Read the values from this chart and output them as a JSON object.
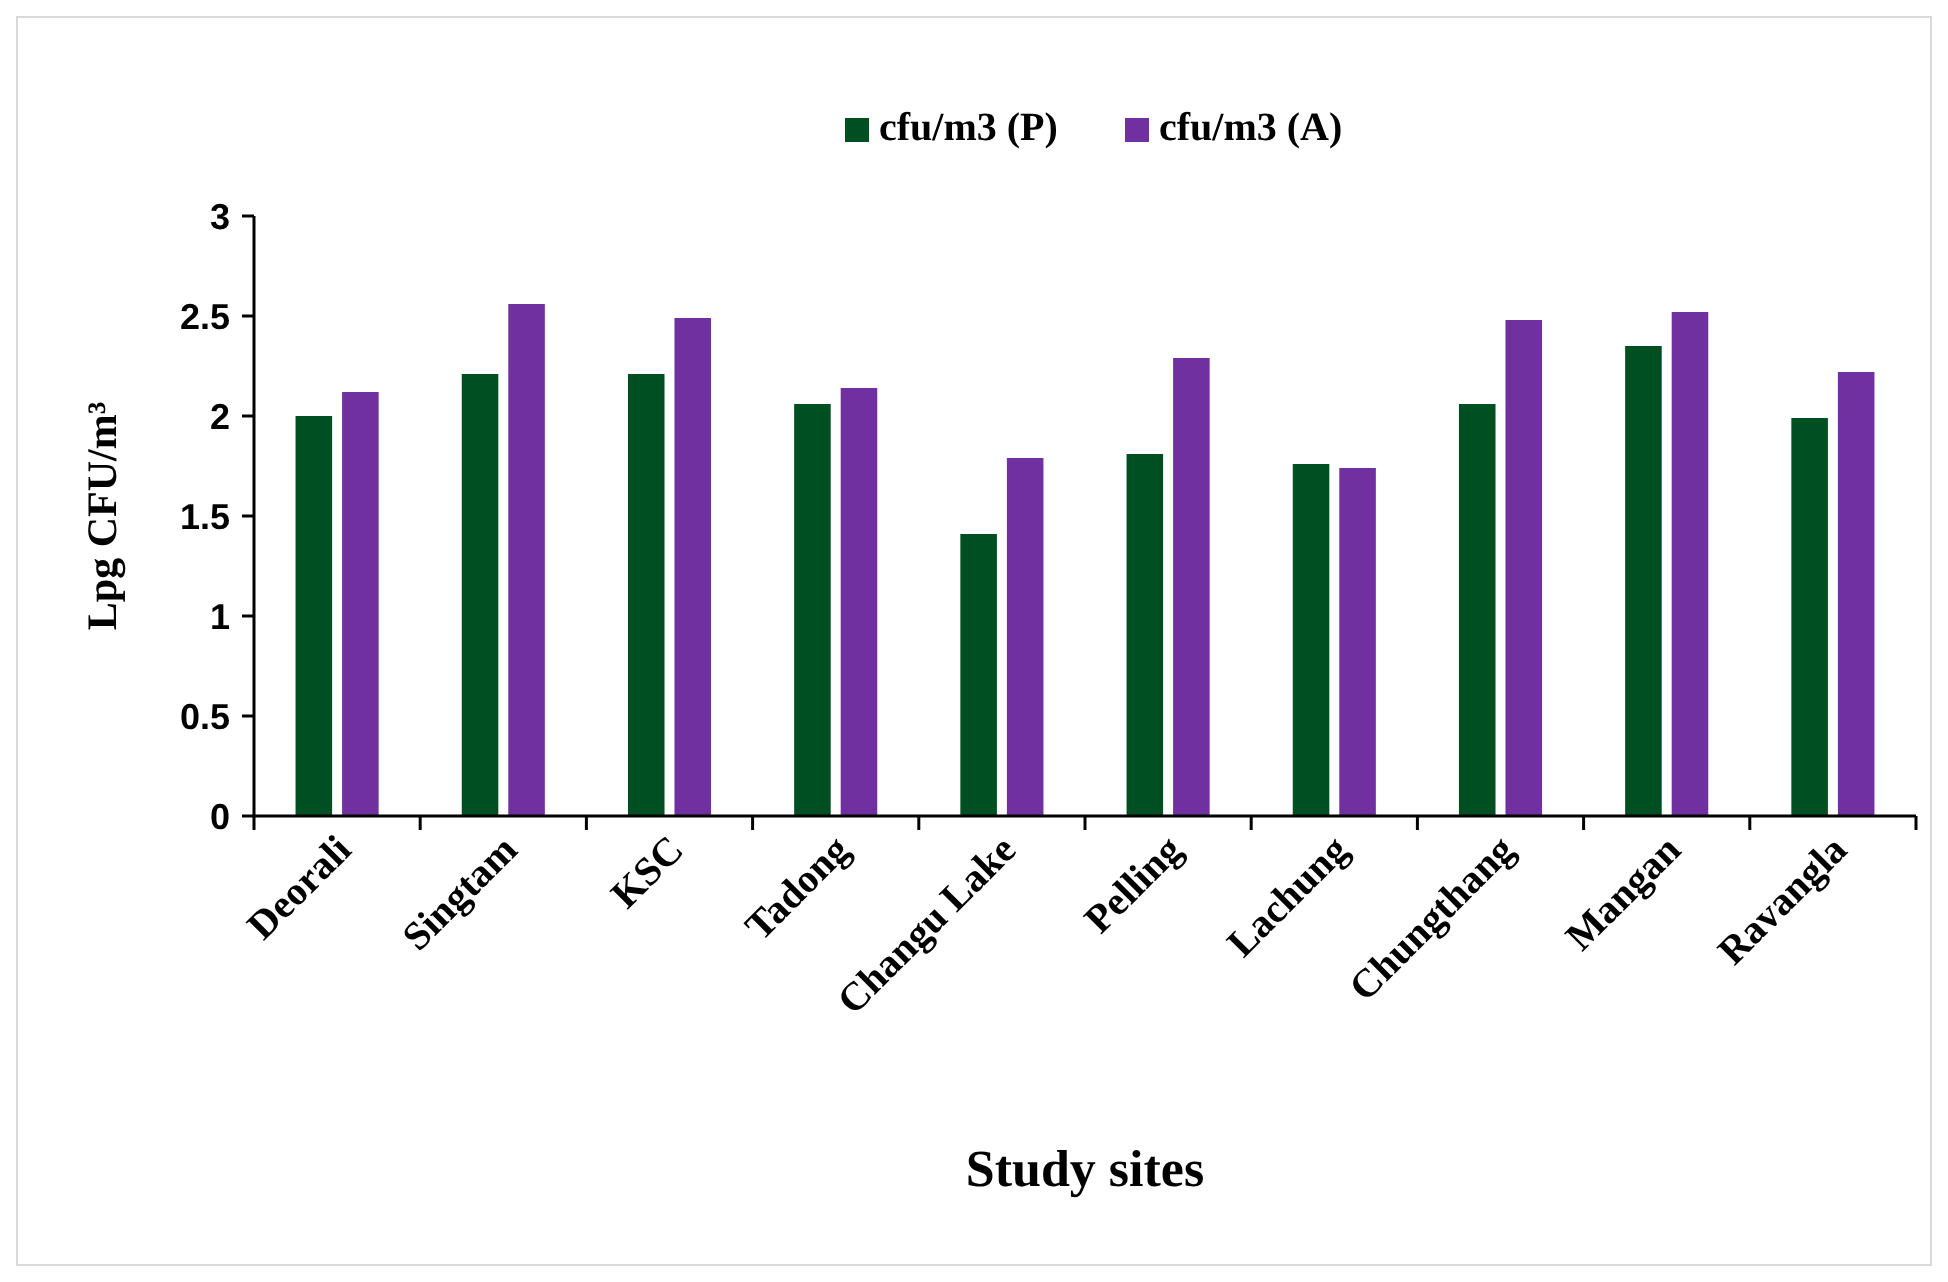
{
  "chart_data": {
    "type": "bar",
    "xlabel": "Study sites",
    "ylabel": "Lpg CFU/m³",
    "categories": [
      "Deorali",
      "Singtam",
      "KSC",
      "Tadong",
      "Changu Lake",
      "Pelling",
      "Lachung",
      "Chungthang",
      "Mangan",
      "Ravangla"
    ],
    "series": [
      {
        "name": "cfu/m3 (P)",
        "color": "#004f23",
        "values": [
          2.0,
          2.21,
          2.21,
          2.06,
          1.41,
          1.81,
          1.76,
          2.06,
          2.35,
          1.99
        ]
      },
      {
        "name": "cfu/m3 (A)",
        "color": "#7030a0",
        "values": [
          2.12,
          2.56,
          2.49,
          2.14,
          1.79,
          2.29,
          1.74,
          2.48,
          2.52,
          2.22
        ]
      }
    ],
    "ylim": [
      0,
      3
    ],
    "yticks": [
      0,
      0.5,
      1,
      1.5,
      2,
      2.5,
      3
    ],
    "grid": false,
    "legend": "top"
  }
}
